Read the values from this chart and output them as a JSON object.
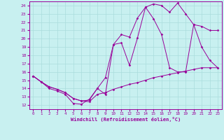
{
  "xlabel": "Windchill (Refroidissement éolien,°C)",
  "bg_color": "#c8f0f0",
  "line_color": "#990099",
  "grid_color": "#aadddd",
  "xlim": [
    -0.5,
    23.5
  ],
  "ylim": [
    11.5,
    24.5
  ],
  "yticks": [
    12,
    13,
    14,
    15,
    16,
    17,
    18,
    19,
    20,
    21,
    22,
    23,
    24
  ],
  "xticks": [
    0,
    1,
    2,
    3,
    4,
    5,
    6,
    7,
    8,
    9,
    10,
    11,
    12,
    13,
    14,
    15,
    16,
    17,
    18,
    19,
    20,
    21,
    22,
    23
  ],
  "line1_x": [
    0,
    1,
    2,
    3,
    4,
    5,
    6,
    7,
    8,
    9,
    10,
    11,
    12,
    13,
    14,
    15,
    16,
    17,
    18,
    19,
    20,
    21,
    22,
    23
  ],
  "line1_y": [
    15.5,
    14.8,
    14.0,
    13.7,
    13.3,
    12.2,
    12.1,
    12.7,
    14.0,
    15.3,
    19.3,
    19.5,
    16.8,
    20.1,
    23.8,
    24.2,
    24.0,
    23.2,
    24.3,
    23.0,
    21.7,
    19.0,
    17.4,
    16.5
  ],
  "line2_x": [
    0,
    1,
    2,
    3,
    4,
    5,
    6,
    7,
    8,
    9,
    10,
    11,
    12,
    13,
    14,
    15,
    16,
    17,
    18,
    19,
    20,
    21,
    22,
    23
  ],
  "line2_y": [
    15.5,
    14.8,
    14.2,
    13.9,
    13.5,
    12.8,
    12.5,
    12.4,
    13.3,
    13.5,
    13.9,
    14.2,
    14.5,
    14.7,
    15.0,
    15.3,
    15.5,
    15.7,
    15.9,
    16.1,
    16.3,
    16.5,
    16.5,
    16.5
  ],
  "line3_x": [
    0,
    1,
    2,
    3,
    4,
    5,
    6,
    7,
    8,
    9,
    10,
    11,
    12,
    13,
    14,
    15,
    16,
    17,
    18,
    19,
    20,
    21,
    22,
    23
  ],
  "line3_y": [
    15.5,
    14.8,
    14.2,
    13.9,
    13.5,
    12.8,
    12.5,
    12.6,
    14.0,
    13.3,
    19.3,
    20.5,
    20.2,
    22.5,
    23.8,
    22.4,
    20.5,
    16.5,
    16.0,
    16.0,
    21.7,
    21.5,
    21.0,
    21.0
  ]
}
